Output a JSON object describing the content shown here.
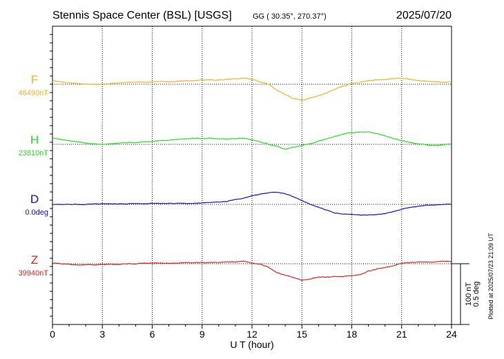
{
  "header": {
    "station": "Stennis Space Center (BSL)  [USGS]",
    "coords": "GG ( 30.35°, 270.37°)",
    "date": "2025/07/20"
  },
  "side_note": "Plotted at 2025/07/23 21:09 UT",
  "scale_note": {
    "line1": "100 nT",
    "line2": "0.5 deg"
  },
  "chart_data": {
    "type": "line",
    "title": "Stennis Space Center (BSL)  [USGS]",
    "xlabel": "U T (hour)",
    "xlim": [
      0,
      24
    ],
    "x_ticks": [
      "0",
      "3",
      "6",
      "9",
      "12",
      "15",
      "18",
      "21",
      "24"
    ],
    "grid": true,
    "series": [
      {
        "name": "F",
        "baseline_label": "46490nT",
        "color": "#f0b020",
        "baseline_offset": 0,
        "x": [
          0,
          0.5,
          1,
          1.5,
          2,
          2.5,
          3,
          3.5,
          4,
          4.5,
          5,
          5.5,
          6,
          6.5,
          7,
          7.5,
          8,
          8.5,
          9,
          9.5,
          10,
          10.5,
          11,
          11.5,
          12,
          12.5,
          13,
          13.5,
          14,
          14.5,
          15,
          15.5,
          16,
          16.5,
          17,
          17.5,
          18,
          18.5,
          19,
          19.5,
          20,
          20.5,
          21,
          21.5,
          22,
          22.5,
          23,
          23.5,
          24
        ],
        "y": [
          6,
          4,
          2,
          1,
          0,
          0,
          0,
          1,
          2,
          3,
          4,
          3,
          4,
          5,
          4,
          5,
          6,
          6,
          7,
          7,
          7,
          8,
          9,
          10,
          8,
          4,
          0,
          -10,
          -17,
          -24,
          -26,
          -23,
          -19,
          -14,
          -8,
          -3,
          1,
          3,
          6,
          7,
          8,
          9,
          10,
          8,
          6,
          5,
          4,
          3,
          4
        ]
      },
      {
        "name": "H",
        "baseline_label": "23810nT",
        "color": "#22dd22",
        "baseline_offset": 0,
        "x": [
          0,
          0.5,
          1,
          1.5,
          2,
          2.5,
          3,
          3.5,
          4,
          4.5,
          5,
          5.5,
          6,
          6.5,
          7,
          7.5,
          8,
          8.5,
          9,
          9.5,
          10,
          10.5,
          11,
          11.5,
          12,
          12.5,
          13,
          13.5,
          14,
          14.5,
          15,
          15.5,
          16,
          16.5,
          17,
          17.5,
          18,
          18.5,
          19,
          19.5,
          20,
          20.5,
          21,
          21.5,
          22,
          22.5,
          23,
          23.5,
          24
        ],
        "y": [
          10,
          8,
          6,
          4,
          2,
          1,
          0,
          1,
          2,
          3,
          3,
          4,
          5,
          6,
          7,
          8,
          9,
          10,
          10,
          10,
          9,
          9,
          9,
          10,
          7,
          4,
          0,
          -3,
          -8,
          -5,
          -2,
          1,
          5,
          9,
          13,
          17,
          19,
          20,
          20,
          18,
          14,
          10,
          6,
          3,
          1,
          -1,
          -2,
          -1,
          1
        ]
      },
      {
        "name": "D",
        "baseline_label": "0.0deg",
        "color": "#1010cc",
        "baseline_offset": 0,
        "x": [
          0,
          0.5,
          1,
          1.5,
          2,
          2.5,
          3,
          3.5,
          4,
          4.5,
          5,
          5.5,
          6,
          6.5,
          7,
          7.5,
          8,
          8.5,
          9,
          9.5,
          10,
          10.5,
          11,
          11.5,
          12,
          12.5,
          13,
          13.5,
          14,
          14.5,
          15,
          15.5,
          16,
          16.5,
          17,
          17.5,
          18,
          18.5,
          19,
          19.5,
          20,
          20.5,
          21,
          21.5,
          22,
          22.5,
          23,
          23.5,
          24
        ],
        "y": [
          0,
          0,
          0,
          0,
          0,
          0.01,
          0.01,
          0.01,
          0.01,
          0.01,
          0.02,
          0.01,
          0.02,
          0.02,
          0.02,
          0.02,
          0.02,
          0.02,
          0.03,
          0.04,
          0.05,
          0.06,
          0.1,
          0.13,
          0.18,
          0.21,
          0.24,
          0.25,
          0.22,
          0.16,
          0.08,
          0.0,
          -0.06,
          -0.12,
          -0.18,
          -0.2,
          -0.21,
          -0.22,
          -0.22,
          -0.21,
          -0.19,
          -0.15,
          -0.1,
          -0.06,
          -0.04,
          -0.02,
          -0.01,
          0,
          0.01
        ]
      },
      {
        "name": "Z",
        "baseline_label": "39940nT",
        "color": "#e02020",
        "baseline_offset": 0,
        "x": [
          0,
          0.5,
          1,
          1.5,
          2,
          2.5,
          3,
          3.5,
          4,
          4.5,
          5,
          5.5,
          6,
          6.5,
          7,
          7.5,
          8,
          8.5,
          9,
          9.5,
          10,
          10.5,
          11,
          11.5,
          12,
          12.5,
          13,
          13.5,
          14,
          14.5,
          15,
          15.5,
          16,
          16.5,
          17,
          17.5,
          18,
          18.5,
          19,
          19.5,
          20,
          20.5,
          21,
          21.5,
          22,
          22.5,
          23,
          23.5,
          24
        ],
        "y": [
          1,
          0,
          -1,
          -2,
          -2,
          -2,
          -1,
          -1,
          -1,
          0,
          0,
          1,
          1,
          1,
          1,
          1,
          2,
          2,
          2,
          2,
          2,
          3,
          3,
          5,
          1,
          -1,
          -6,
          -15,
          -19,
          -23,
          -27,
          -25,
          -22,
          -22,
          -21,
          -21,
          -20,
          -18,
          -12,
          -9,
          -6,
          -3,
          1,
          2,
          3,
          3,
          3,
          4,
          4
        ]
      }
    ]
  }
}
